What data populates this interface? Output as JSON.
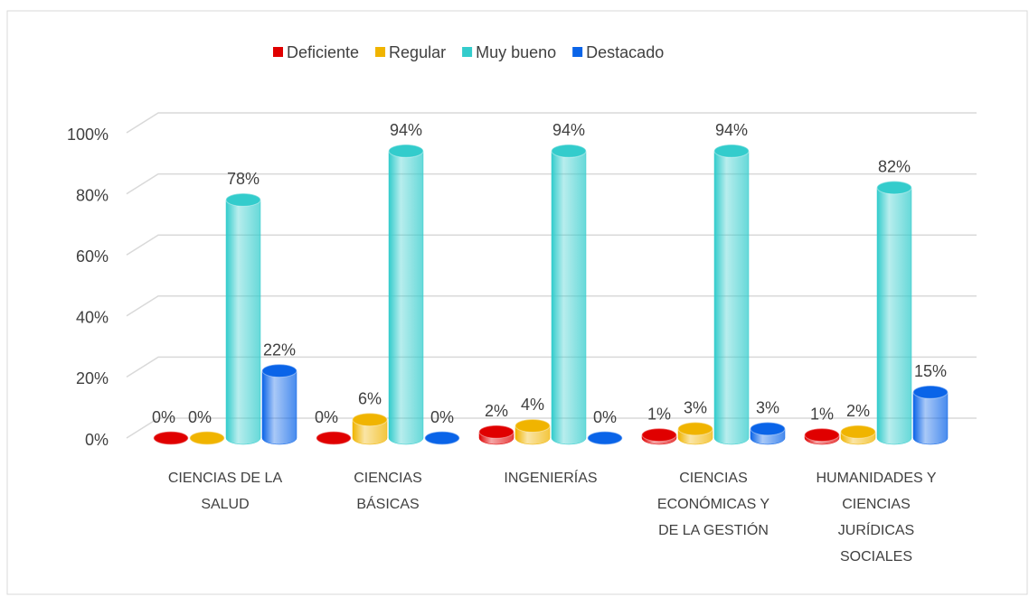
{
  "chart_data": {
    "type": "bar",
    "categories": [
      "CIENCIAS DE LA SALUD",
      "CIENCIAS BÁSICAS",
      "INGENIERÍAS",
      "CIENCIAS ECONÓMICAS Y DE LA GESTIÓN",
      "HUMANIDADES Y CIENCIAS JURÍDICAS SOCIALES"
    ],
    "series": [
      {
        "name": "Deficiente",
        "color": "#e00000",
        "values": [
          0,
          0,
          2,
          1,
          1
        ],
        "value_labels": [
          "0%",
          "0%",
          "2%",
          "1%",
          "1%"
        ]
      },
      {
        "name": "Regular",
        "color": "#f0b400",
        "values": [
          0,
          6,
          4,
          3,
          2
        ],
        "value_labels": [
          "0%",
          "6%",
          "4%",
          "3%",
          "2%"
        ]
      },
      {
        "name": "Muy bueno",
        "color": "#33cccc",
        "values": [
          78,
          94,
          94,
          94,
          82
        ],
        "value_labels": [
          "78%",
          "94%",
          "94%",
          "94%",
          "82%"
        ]
      },
      {
        "name": "Destacado",
        "color": "#0a64e8",
        "values": [
          22,
          0,
          0,
          3,
          15
        ],
        "value_labels": [
          "22%",
          "0%",
          "0%",
          "3%",
          "15%"
        ]
      }
    ],
    "ylim": [
      0,
      100
    ],
    "yticks": [
      {
        "value": 0,
        "label": "0%"
      },
      {
        "value": 20,
        "label": "20%"
      },
      {
        "value": 40,
        "label": "40%"
      },
      {
        "value": 60,
        "label": "60%"
      },
      {
        "value": 80,
        "label": "80%"
      },
      {
        "value": 100,
        "label": "100%"
      }
    ],
    "grid": true,
    "legend": "top"
  }
}
